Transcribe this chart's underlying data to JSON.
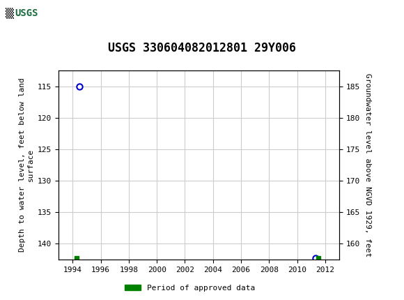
{
  "title": "USGS 330604082012801 29Y006",
  "header_color": "#1a6b3c",
  "xlim": [
    1993,
    2013
  ],
  "xticks": [
    1994,
    1996,
    1998,
    2000,
    2002,
    2004,
    2006,
    2008,
    2010,
    2012
  ],
  "ylim_left": [
    142.5,
    112.5
  ],
  "yticks_left": [
    115,
    120,
    125,
    130,
    135,
    140
  ],
  "ylim_right": [
    157.5,
    187.5
  ],
  "yticks_right": [
    160,
    165,
    170,
    175,
    180,
    185
  ],
  "ylabel_left": "Depth to water level, feet below land\nsurface",
  "ylabel_right": "Groundwater level above NGVD 1929, feet",
  "pt1_x": 1994.5,
  "pt1_y": 115.0,
  "pt2_x": 1994.3,
  "pt2_y": 142.3,
  "pt3_x": 2011.3,
  "pt3_y": 142.3,
  "pt4_x": 2011.5,
  "pt4_y": 142.3,
  "legend_label": "Period of approved data",
  "legend_color": "#008000",
  "circle_color": "#0000cc",
  "square_color": "#008000",
  "grid_color": "#cccccc",
  "background_color": "#ffffff",
  "title_fontsize": 12,
  "axis_fontsize": 8,
  "tick_fontsize": 8
}
